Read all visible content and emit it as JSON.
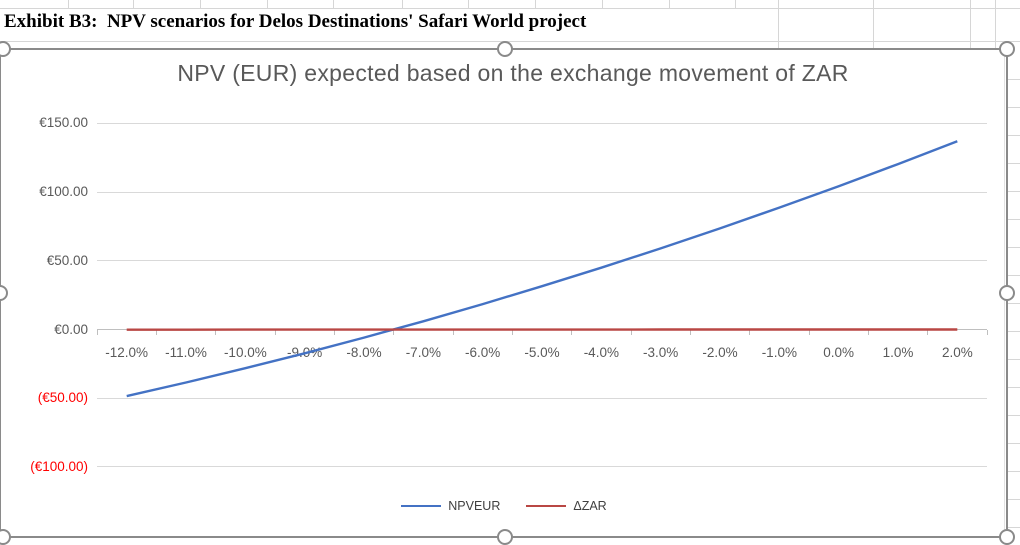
{
  "sheet": {
    "exhibit_title": "Exhibit B3:  NPV scenarios for Delos Destinations' Safari World project"
  },
  "chart": {
    "selected": true,
    "selection_color": "#8A8A8A",
    "text_color": "#595959",
    "gridline_color": "#D9D9D9",
    "negative_label_color": "#FF0000"
  },
  "chart_data": {
    "type": "line",
    "title": "NPV (EUR) expected based on the exchange movement of ZAR",
    "xlabel": "",
    "ylabel": "",
    "categories": [
      "-12.0%",
      "-11.0%",
      "-10.0%",
      "-9.0%",
      "-8.0%",
      "-7.0%",
      "-6.0%",
      "-5.0%",
      "-4.0%",
      "-3.0%",
      "-2.0%",
      "-1.0%",
      "0.0%",
      "1.0%",
      "2.0%"
    ],
    "series": [
      {
        "name": "NPVEUR",
        "color": "#4472C4",
        "values": [
          -48.5,
          -38.6,
          -28.2,
          -17.3,
          -5.9,
          6.0,
          18.5,
          31.5,
          45.0,
          59.0,
          73.6,
          88.7,
          104.3,
          120.4,
          137.0
        ]
      },
      {
        "name": "ΔZAR",
        "color": "#B94744",
        "values": [
          -0.12,
          -0.11,
          -0.1,
          -0.09,
          -0.08,
          -0.07,
          -0.06,
          -0.05,
          -0.04,
          -0.03,
          -0.02,
          -0.01,
          0.0,
          0.01,
          0.02
        ]
      }
    ],
    "y_ticks": [
      {
        "label": "€150.00",
        "value": 150,
        "color": "#595959"
      },
      {
        "label": "€100.00",
        "value": 100,
        "color": "#595959"
      },
      {
        "label": "€50.00",
        "value": 50,
        "color": "#595959"
      },
      {
        "label": "€0.00",
        "value": 0,
        "color": "#595959"
      },
      {
        "label": "(€50.00)",
        "value": -50,
        "color": "#FF0000"
      },
      {
        "label": "(€100.00)",
        "value": -100,
        "color": "#FF0000"
      }
    ],
    "ylim": [
      -100,
      150
    ],
    "grid": true,
    "legend_position": "bottom",
    "x_labels_position": "next-to-zero-axis"
  }
}
